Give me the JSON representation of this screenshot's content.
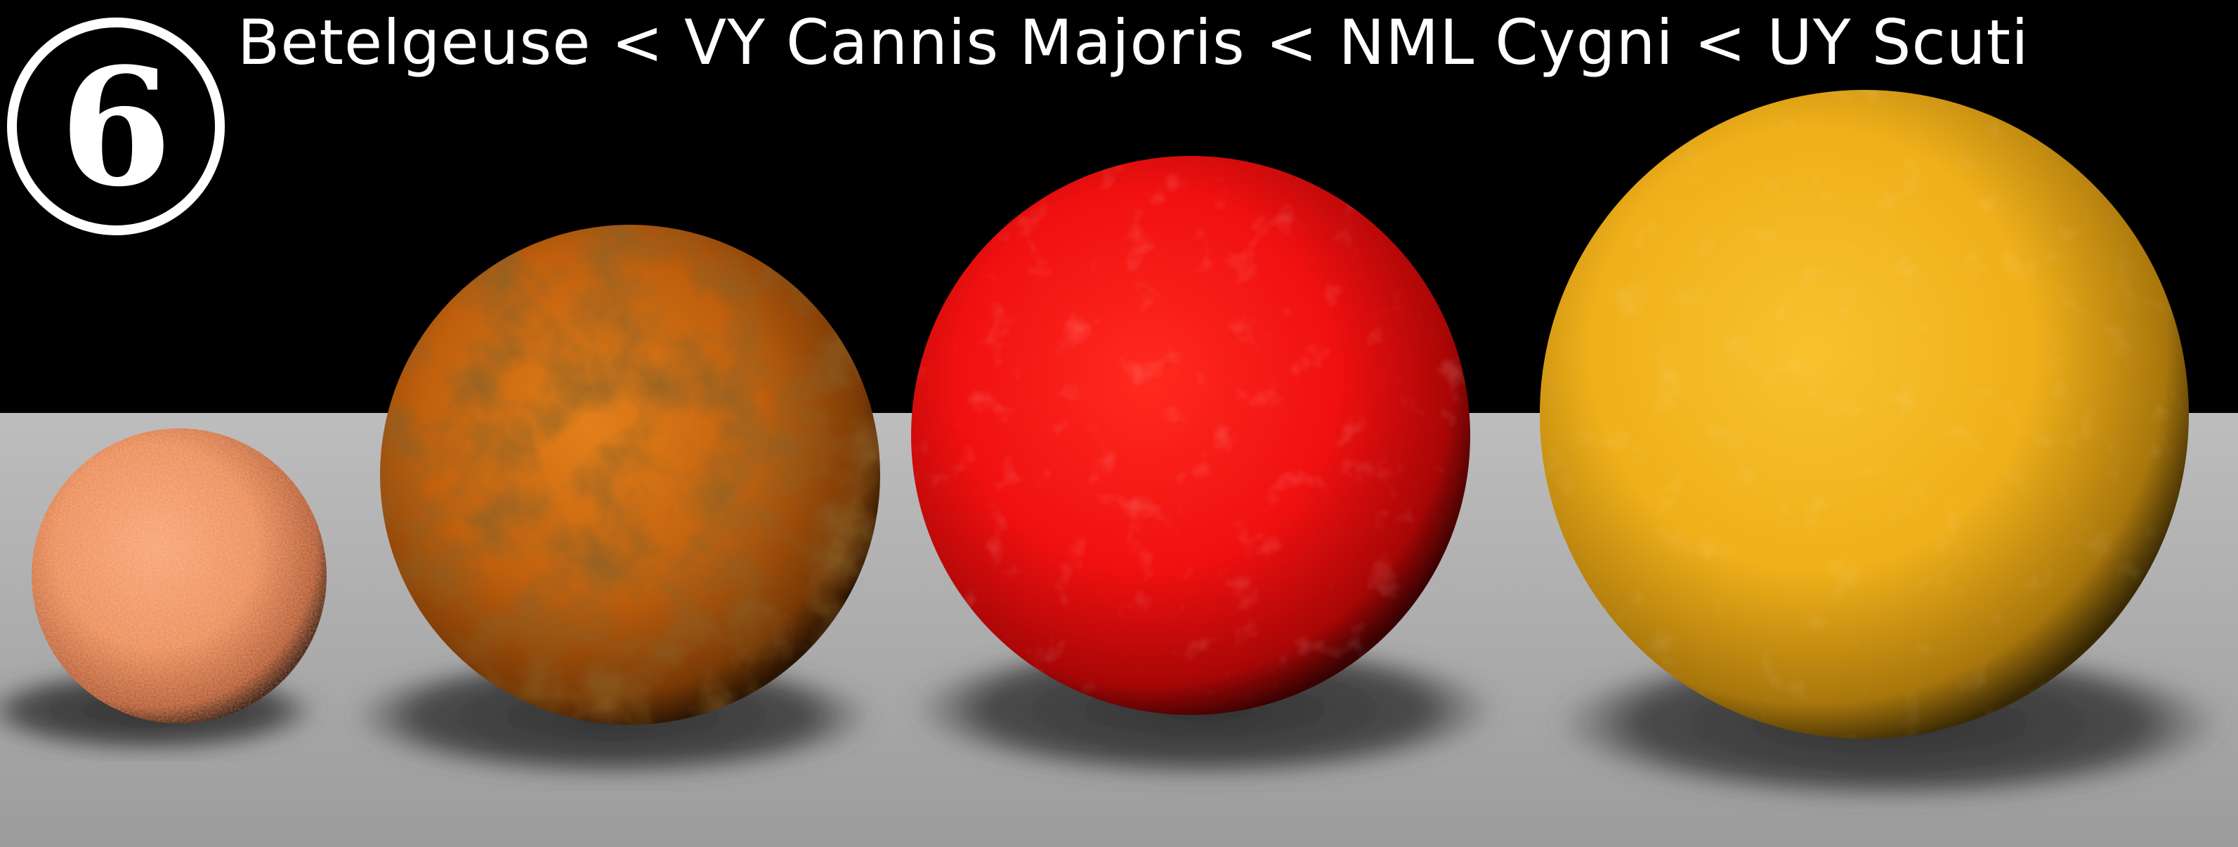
{
  "badge": {
    "number": "6"
  },
  "heading": {
    "text": "Betelgeuse < VY Cannis Majoris < NML Cygni < UY Scuti"
  },
  "colors": {
    "sky": "#000000",
    "floor": "#a9a9a9",
    "star_1": "#f0905a",
    "star_2": "#c8620c",
    "star_3": "#f20c0c",
    "star_4": "#f2b418"
  }
}
